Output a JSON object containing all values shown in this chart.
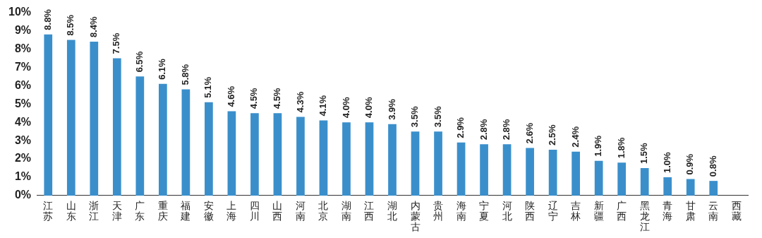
{
  "chart_data": {
    "type": "bar",
    "categories": [
      "江苏",
      "山东",
      "浙江",
      "天津",
      "广东",
      "重庆",
      "福建",
      "安徽",
      "上海",
      "四川",
      "山西",
      "河南",
      "北京",
      "湖南",
      "江西",
      "湖北",
      "内蒙古",
      "贵州",
      "海南",
      "宁夏",
      "河北",
      "陕西",
      "辽宁",
      "吉林",
      "新疆",
      "广西",
      "黑龙江",
      "青海",
      "甘肃",
      "云南",
      "西藏"
    ],
    "values": [
      8.8,
      8.5,
      8.4,
      7.5,
      6.5,
      6.1,
      5.8,
      5.1,
      4.6,
      4.5,
      4.5,
      4.3,
      4.1,
      4.0,
      4.0,
      3.9,
      3.5,
      3.5,
      2.9,
      2.8,
      2.8,
      2.6,
      2.5,
      2.4,
      1.9,
      1.8,
      1.5,
      1.0,
      0.9,
      0.8,
      null
    ],
    "value_labels": [
      "8.8%",
      "8.5%",
      "8.4%",
      "7.5%",
      "6.5%",
      "6.1%",
      "5.8%",
      "5.1%",
      "4.6%",
      "4.5%",
      "4.5%",
      "4.3%",
      "4.1%",
      "4.0%",
      "4.0%",
      "3.9%",
      "3.5%",
      "3.5%",
      "2.9%",
      "2.8%",
      "2.8%",
      "2.6%",
      "2.5%",
      "2.4%",
      "1.9%",
      "1.8%",
      "1.5%",
      "1.0%",
      "0.9%",
      "0.8%",
      null
    ],
    "color": "#3a8fcb",
    "ylim": [
      0,
      10
    ],
    "yticks": [
      {
        "value": 0,
        "label": "0%"
      },
      {
        "value": 1,
        "label": "1%"
      },
      {
        "value": 2,
        "label": "2%"
      },
      {
        "value": 3,
        "label": "3%"
      },
      {
        "value": 4,
        "label": "4%"
      },
      {
        "value": 5,
        "label": "5%"
      },
      {
        "value": 6,
        "label": "6%"
      },
      {
        "value": 7,
        "label": "7%"
      },
      {
        "value": 8,
        "label": "8%"
      },
      {
        "value": 9,
        "label": "9%"
      },
      {
        "value": 10,
        "label": "10%"
      }
    ],
    "grid": false
  }
}
